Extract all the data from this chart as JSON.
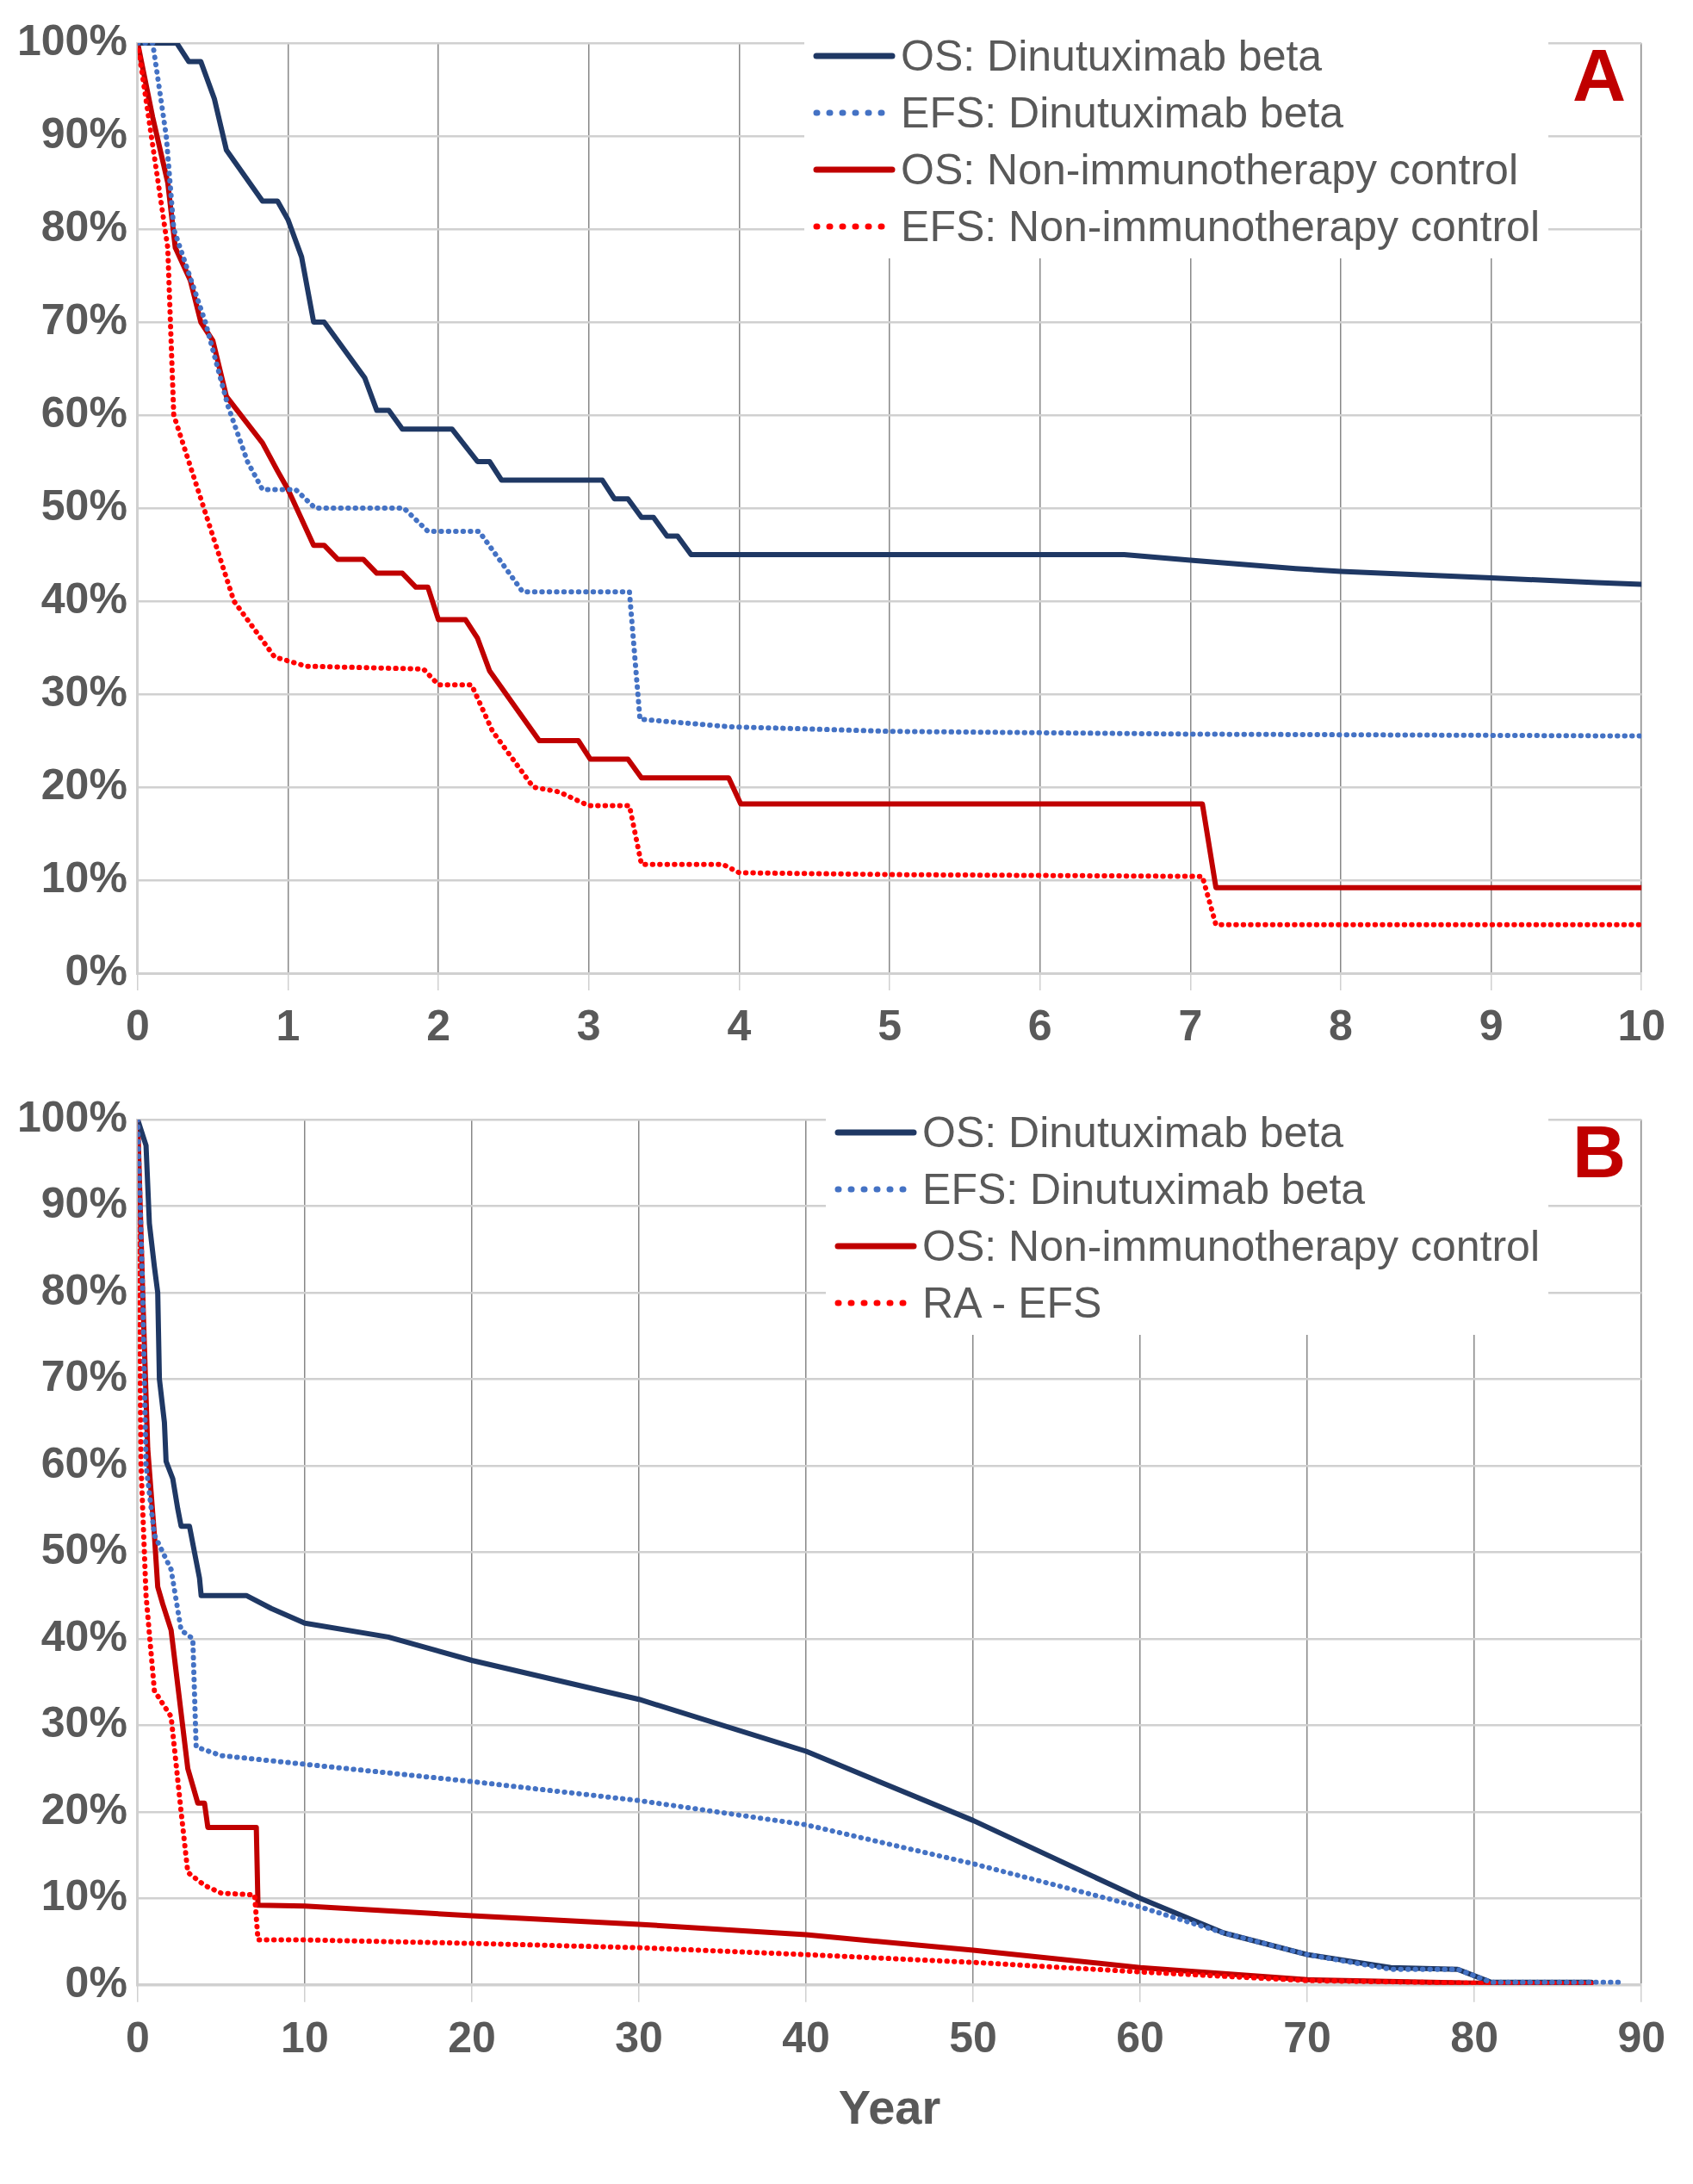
{
  "chart_data": [
    {
      "type": "line",
      "annotations": [
        "A"
      ],
      "legend": "top right",
      "grid": true,
      "marker": "none",
      "xlim": [
        0,
        10
      ],
      "xticks": [
        0,
        1,
        2,
        3,
        4,
        5,
        6,
        7,
        8,
        9,
        10
      ],
      "ylim": [
        0,
        100
      ],
      "yticks": [
        {
          "value": 0,
          "label": "0%"
        },
        {
          "value": 10,
          "label": "10%"
        },
        {
          "value": 20,
          "label": "20%"
        },
        {
          "value": 30,
          "label": "30%"
        },
        {
          "value": 40,
          "label": "40%"
        },
        {
          "value": 50,
          "label": "50%"
        },
        {
          "value": 60,
          "label": "60%"
        },
        {
          "value": 70,
          "label": "70%"
        },
        {
          "value": 80,
          "label": "80%"
        },
        {
          "value": 90,
          "label": "90%"
        },
        {
          "value": 100,
          "label": "100%"
        }
      ],
      "series": [
        {
          "name": "OS: Dinutuximab beta",
          "color": "#1f3864",
          "line_style": "solid",
          "x": [
            0,
            0.26,
            0.34,
            0.42,
            0.51,
            0.59,
            0.83,
            0.93,
            1.0,
            1.09,
            1.17,
            1.24,
            1.51,
            1.59,
            1.67,
            1.76,
            2.09,
            2.26,
            2.34,
            2.42,
            3.09,
            3.17,
            3.26,
            3.35,
            3.43,
            3.52,
            3.59,
            3.68,
            6.56,
            7,
            7.7,
            8,
            9,
            9.7,
            10
          ],
          "values": [
            100,
            100,
            98,
            98,
            94,
            88.5,
            83,
            83,
            81,
            77,
            70,
            70,
            64,
            60.5,
            60.5,
            58.5,
            58.5,
            55,
            55,
            53,
            53,
            51,
            51,
            49,
            49,
            47,
            47,
            45,
            45,
            44.4,
            43.5,
            43.2,
            42.5,
            42,
            41.8
          ]
        },
        {
          "name": "EFS: Dinutuximab beta",
          "color": "#4472c4",
          "line_style": "dotted",
          "x": [
            0,
            0.1,
            0.19,
            0.24,
            0.45,
            0.6,
            0.73,
            0.83,
            1.05,
            1.18,
            1.77,
            1.93,
            2.27,
            2.56,
            3.27,
            3.34,
            3.93,
            5,
            7,
            10
          ],
          "values": [
            100,
            100,
            90,
            80,
            70,
            61,
            55,
            52,
            52,
            50,
            50,
            47.5,
            47.5,
            41,
            41,
            27.3,
            26.5,
            26,
            25.7,
            25.5
          ]
        },
        {
          "name": "OS: Non-immunotherapy control",
          "color": "#c00000",
          "line_style": "solid",
          "x": [
            0,
            0.1,
            0.2,
            0.25,
            0.35,
            0.42,
            0.5,
            0.59,
            0.83,
            0.93,
            1.0,
            1.17,
            1.24,
            1.33,
            1.5,
            1.59,
            1.76,
            1.85,
            1.93,
            2.0,
            2.18,
            2.26,
            2.34,
            2.67,
            2.93,
            3.01,
            3.26,
            3.35,
            3.93,
            4.01,
            7.08,
            7.17,
            10
          ],
          "values": [
            100,
            92,
            85,
            78,
            74.5,
            70,
            68,
            62,
            57,
            54,
            52,
            46,
            46,
            44.5,
            44.5,
            43,
            43,
            41.5,
            41.5,
            38,
            38,
            36,
            32.5,
            25,
            25,
            23,
            23,
            21,
            21,
            18.2,
            18.2,
            9.2,
            9.2
          ]
        },
        {
          "name": "EFS: Non-immunotherapy control",
          "color": "#ff0000",
          "line_style": "dotted",
          "x": [
            0,
            0.2,
            0.24,
            0.44,
            0.64,
            0.91,
            1.12,
            1.9,
            2.0,
            2.22,
            2.36,
            2.63,
            2.8,
            3.0,
            3.27,
            3.35,
            3.89,
            4.0,
            5,
            7.08,
            7.17,
            10
          ],
          "values": [
            100,
            78,
            60,
            50,
            40,
            34,
            33,
            32.7,
            31,
            31,
            26,
            20,
            19.5,
            18,
            18,
            11.7,
            11.7,
            10.8,
            10.6,
            10.4,
            5.2,
            5.2
          ]
        }
      ]
    },
    {
      "type": "line",
      "annotations": [
        "B"
      ],
      "xlabel": "Year",
      "legend": "top right",
      "grid": true,
      "marker": "none",
      "xlim": [
        0,
        90
      ],
      "xticks": [
        0,
        10,
        20,
        30,
        40,
        50,
        60,
        70,
        80,
        90
      ],
      "ylim": [
        0,
        100
      ],
      "yticks": [
        {
          "value": 0,
          "label": "0%"
        },
        {
          "value": 10,
          "label": "10%"
        },
        {
          "value": 20,
          "label": "20%"
        },
        {
          "value": 30,
          "label": "30%"
        },
        {
          "value": 40,
          "label": "40%"
        },
        {
          "value": 50,
          "label": "50%"
        },
        {
          "value": 60,
          "label": "60%"
        },
        {
          "value": 70,
          "label": "70%"
        },
        {
          "value": 80,
          "label": "80%"
        },
        {
          "value": 90,
          "label": "90%"
        },
        {
          "value": 100,
          "label": "100%"
        }
      ],
      "series": [
        {
          "name": "OS: Dinutuximab beta",
          "color": "#1f3864",
          "line_style": "solid",
          "x": [
            0,
            0.5,
            0.7,
            1,
            1.2,
            1.3,
            1.6,
            1.7,
            2.1,
            2.4,
            2.6,
            3.1,
            3.5,
            3.7,
            3.8,
            6.5,
            8,
            10,
            15,
            20,
            30,
            40,
            50,
            60,
            65,
            70,
            75,
            79,
            81,
            87
          ],
          "values": [
            100,
            97,
            88,
            83,
            80,
            70,
            65,
            60.5,
            58.5,
            55,
            53,
            53,
            49,
            47,
            45,
            45,
            43.5,
            41.8,
            40.2,
            37.5,
            33,
            27,
            19,
            10,
            6,
            3.5,
            2,
            1.8,
            0.3,
            0.3
          ]
        },
        {
          "name": "EFS: Dinutuximab beta",
          "color": "#4472c4",
          "line_style": "dotted",
          "x": [
            0,
            0.3,
            0.5,
            1,
            1.5,
            2,
            2.6,
            3.3,
            3.5,
            5,
            10,
            20,
            30,
            40,
            50,
            60,
            65,
            70,
            75,
            79,
            81,
            89
          ],
          "values": [
            100,
            80,
            60,
            52,
            50,
            48,
            41,
            40,
            27.5,
            26.5,
            25.5,
            23.5,
            21.3,
            18.5,
            14,
            9,
            6,
            3.5,
            1.8,
            1.8,
            0.3,
            0.3
          ]
        },
        {
          "name": "OS: Non-immunotherapy control",
          "color": "#c00000",
          "line_style": "solid",
          "x": [
            0,
            0.3,
            0.6,
            1,
            1.2,
            1.5,
            2,
            2.5,
            3,
            3.3,
            3.6,
            4,
            4.2,
            7.1,
            7.2,
            10,
            20,
            30,
            40,
            50,
            60,
            70,
            80,
            87
          ],
          "values": [
            100,
            80,
            62,
            52,
            46,
            44,
            41,
            33,
            25,
            23,
            21,
            21,
            18.2,
            18.2,
            9.2,
            9.1,
            8,
            7,
            5.8,
            4,
            2,
            0.6,
            0.2,
            0.2
          ]
        },
        {
          "name": "RA - EFS",
          "color": "#ff0000",
          "line_style": "dotted",
          "x": [
            0,
            0.2,
            0.5,
            1,
            2,
            2.6,
            3,
            4,
            5,
            7,
            7.2,
            10,
            20,
            30,
            40,
            50,
            60,
            70,
            80,
            87
          ],
          "values": [
            100,
            60,
            45,
            34,
            31,
            20,
            13,
            11.5,
            10.6,
            10.4,
            5.2,
            5.2,
            4.8,
            4.3,
            3.5,
            2.6,
            1.5,
            0.5,
            0.2,
            0.2
          ]
        }
      ]
    }
  ]
}
